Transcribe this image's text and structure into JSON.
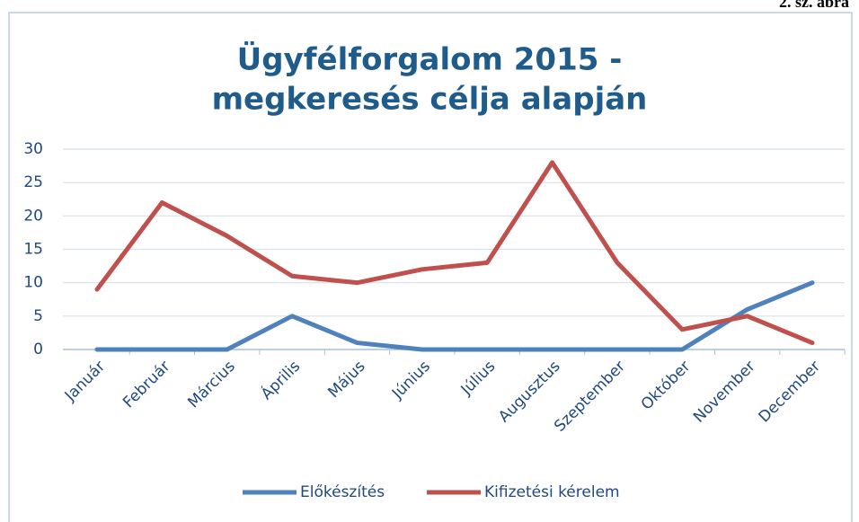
{
  "chart_data": {
    "type": "line",
    "figure_label": "2. sz. ábra",
    "title": [
      "Ügyfélforgalom 2015 -",
      "megkeresés célja alapján"
    ],
    "categories": [
      "Január",
      "Február",
      "Március",
      "Április",
      "Május",
      "Június",
      "Július",
      "Augusztus",
      "Szeptember",
      "Október",
      "November",
      "December"
    ],
    "series": [
      {
        "name": "Előkészítés",
        "color": "#4f81bd",
        "values": [
          0,
          0,
          0,
          5,
          1,
          0,
          0,
          0,
          0,
          0,
          6,
          10
        ]
      },
      {
        "name": "Kifizetési kérelem",
        "color": "#c0504d",
        "values": [
          9,
          22,
          17,
          11,
          10,
          12,
          13,
          28,
          13,
          3,
          5,
          1
        ]
      }
    ],
    "ylim": [
      0,
      30
    ],
    "yticks": [
      0,
      5,
      10,
      15,
      20,
      25,
      30
    ],
    "grid": true,
    "legend": "bottom"
  }
}
